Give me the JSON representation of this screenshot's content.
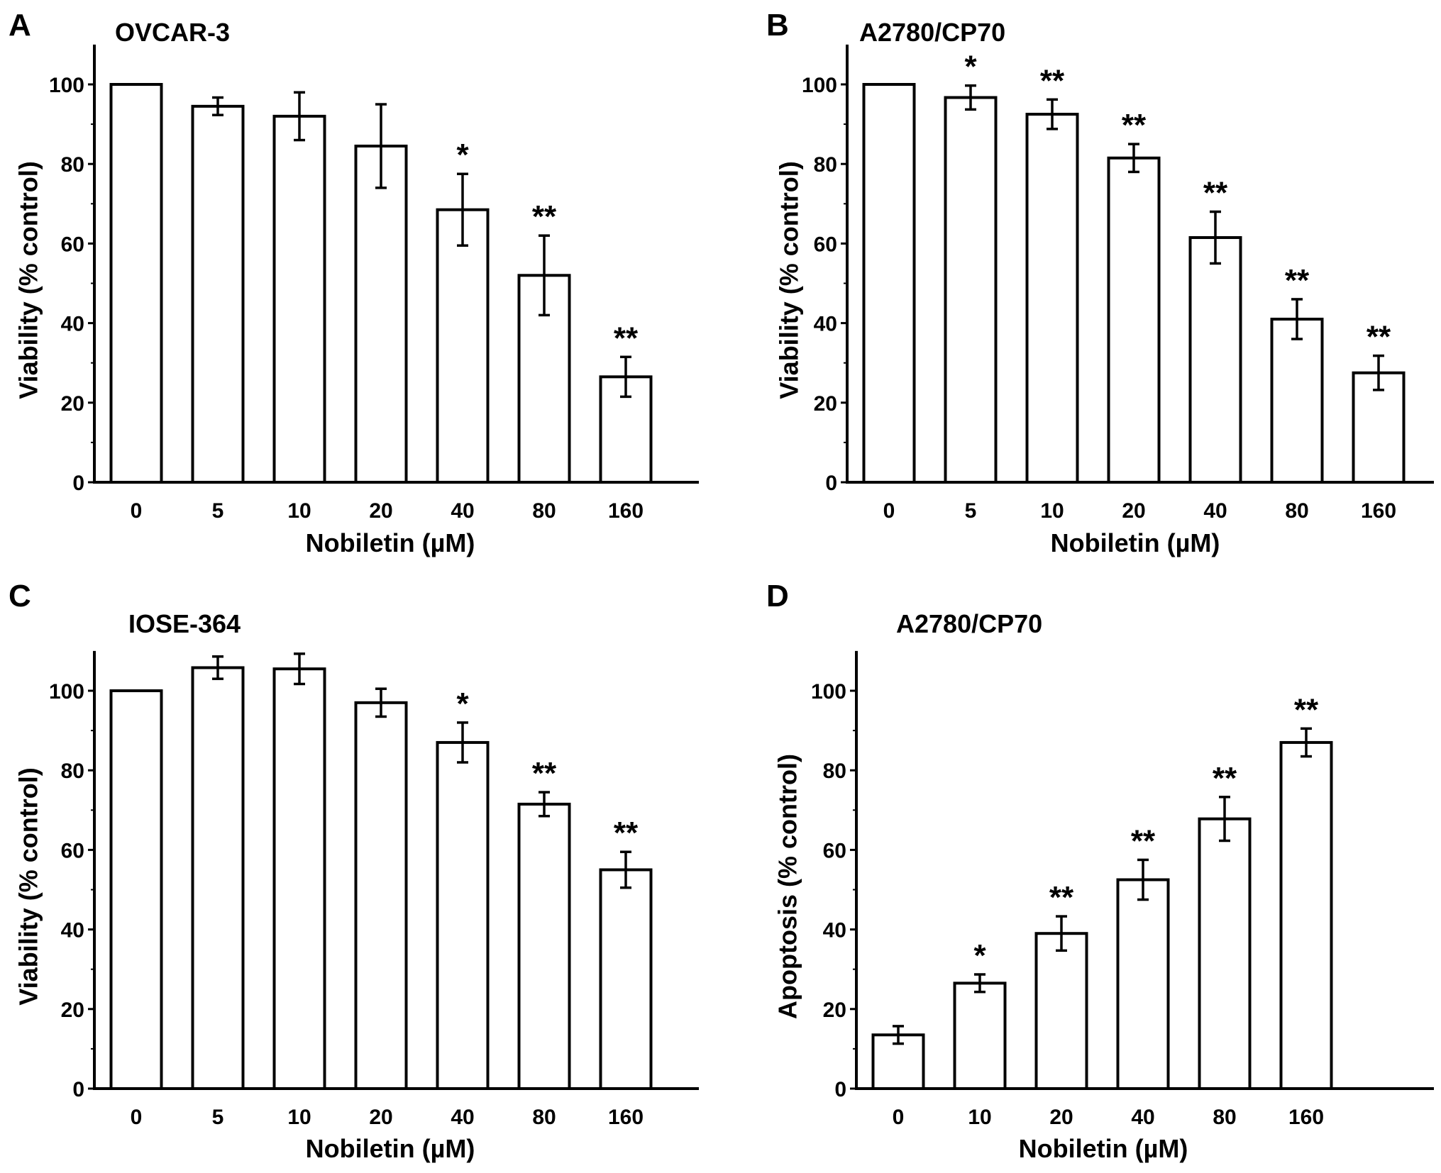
{
  "chart_data": [
    {
      "type": "bar",
      "panel": "A",
      "title": "OVCAR-3",
      "xlabel": "Nobiletin (µM)",
      "ylabel": "Viability (% control)",
      "ylim": [
        0,
        110
      ],
      "yticks": [
        0,
        20,
        40,
        60,
        80,
        100
      ],
      "categories": [
        "0",
        "5",
        "10",
        "20",
        "40",
        "80",
        "160"
      ],
      "values": [
        100,
        94.5,
        92,
        84.5,
        68.5,
        52,
        26.5
      ],
      "errors": [
        0,
        2.2,
        6,
        10.5,
        9,
        10,
        5
      ],
      "significance": [
        "",
        "",
        "",
        "",
        "*",
        "**",
        "**"
      ]
    },
    {
      "type": "bar",
      "panel": "B",
      "title": "A2780/CP70",
      "xlabel": "Nobiletin (µM)",
      "ylabel": "Viability (% control)",
      "ylim": [
        0,
        110
      ],
      "yticks": [
        0,
        20,
        40,
        60,
        80,
        100
      ],
      "categories": [
        "0",
        "5",
        "10",
        "20",
        "40",
        "80",
        "160"
      ],
      "values": [
        100,
        96.7,
        92.5,
        81.5,
        61.5,
        41,
        27.5
      ],
      "errors": [
        0,
        3,
        3.7,
        3.5,
        6.5,
        5,
        4.3
      ],
      "significance": [
        "",
        "*",
        "**",
        "**",
        "**",
        "**",
        "**"
      ]
    },
    {
      "type": "bar",
      "panel": "C",
      "title": "IOSE-364",
      "xlabel": "Nobiletin (µM)",
      "ylabel": "Viability (% control)",
      "ylim": [
        0,
        110
      ],
      "yticks": [
        0,
        20,
        40,
        60,
        80,
        100
      ],
      "categories": [
        "0",
        "5",
        "10",
        "20",
        "40",
        "80",
        "160"
      ],
      "values": [
        100,
        105.8,
        105.5,
        97,
        87,
        71.5,
        55
      ],
      "errors": [
        0,
        2.8,
        3.8,
        3.5,
        5,
        3,
        4.5
      ],
      "significance": [
        "",
        "",
        "",
        "",
        "*",
        "**",
        "**"
      ]
    },
    {
      "type": "bar",
      "panel": "D",
      "title": "A2780/CP70",
      "xlabel": "Nobiletin (µM)",
      "ylabel": "Apoptosis (% control)",
      "ylim": [
        0,
        110
      ],
      "yticks": [
        0,
        20,
        40,
        60,
        80,
        100
      ],
      "categories": [
        "0",
        "10",
        "20",
        "40",
        "80",
        "160"
      ],
      "values": [
        13.5,
        26.5,
        39,
        52.5,
        67.8,
        87
      ],
      "errors": [
        2.2,
        2.2,
        4.3,
        5,
        5.5,
        3.5
      ],
      "significance": [
        "",
        "*",
        "**",
        "**",
        "**",
        "**"
      ]
    }
  ]
}
